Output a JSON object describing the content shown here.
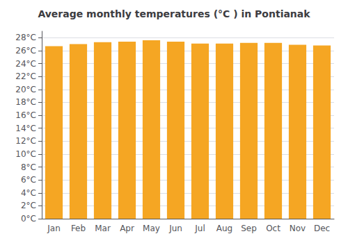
{
  "chart_data": {
    "type": "bar",
    "title": "Average monthly temperatures (°C ) in Pontianak",
    "categories": [
      "Jan",
      "Feb",
      "Mar",
      "Apr",
      "May",
      "Jun",
      "Jul",
      "Aug",
      "Sep",
      "Oct",
      "Nov",
      "Dec"
    ],
    "values": [
      26.7,
      27.0,
      27.3,
      27.4,
      27.6,
      27.4,
      27.1,
      27.1,
      27.2,
      27.2,
      26.9,
      26.8
    ],
    "color": "#F5A623",
    "ylim": [
      0,
      29
    ],
    "yticks": [
      {
        "value": 0,
        "label": "0°C"
      },
      {
        "value": 2,
        "label": "2°C"
      },
      {
        "value": 4,
        "label": "4°C"
      },
      {
        "value": 6,
        "label": "6°C"
      },
      {
        "value": 8,
        "label": "8°C"
      },
      {
        "value": 10,
        "label": "10°C"
      },
      {
        "value": 12,
        "label": "12°C"
      },
      {
        "value": 14,
        "label": "14°C"
      },
      {
        "value": 16,
        "label": "16°C"
      },
      {
        "value": 18,
        "label": "18°C"
      },
      {
        "value": 20,
        "label": "20°C"
      },
      {
        "value": 22,
        "label": "22°C"
      },
      {
        "value": 24,
        "label": "24°C"
      },
      {
        "value": 26,
        "label": "26°C"
      },
      {
        "value": 28,
        "label": "28°C"
      }
    ],
    "grid": true
  }
}
